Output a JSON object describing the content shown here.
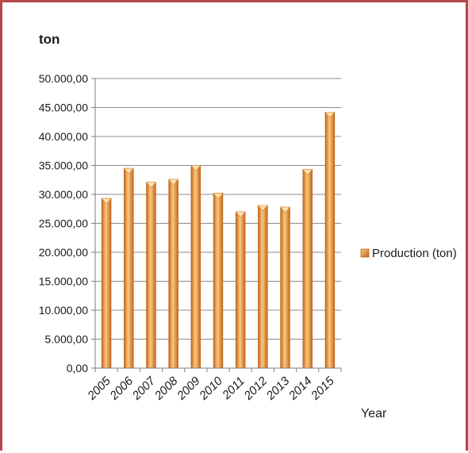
{
  "chart_data": {
    "type": "bar",
    "ylabel": "ton",
    "xlabel": "Year",
    "categories": [
      "2005",
      "2006",
      "2007",
      "2008",
      "2009",
      "2010",
      "2011",
      "2012",
      "2013",
      "2014",
      "2015"
    ],
    "series": [
      {
        "name": "Production (ton)",
        "values": [
          29300,
          34500,
          32100,
          32600,
          35000,
          30200,
          27000,
          28100,
          27800,
          34300,
          44200
        ]
      }
    ],
    "ylim": [
      0,
      50000
    ],
    "yticks": [
      "0,00",
      "5.000,00",
      "10.000,00",
      "15.000,00",
      "20.000,00",
      "25.000,00",
      "30.000,00",
      "35.000,00",
      "40.000,00",
      "45.000,00",
      "50.000,00"
    ],
    "grid": true,
    "legend_position": "right",
    "colors": {
      "bar_light": "#fbc880",
      "bar_mid": "#f39a36",
      "bar_dark": "#c7661a",
      "frame": "#b5484a"
    }
  }
}
